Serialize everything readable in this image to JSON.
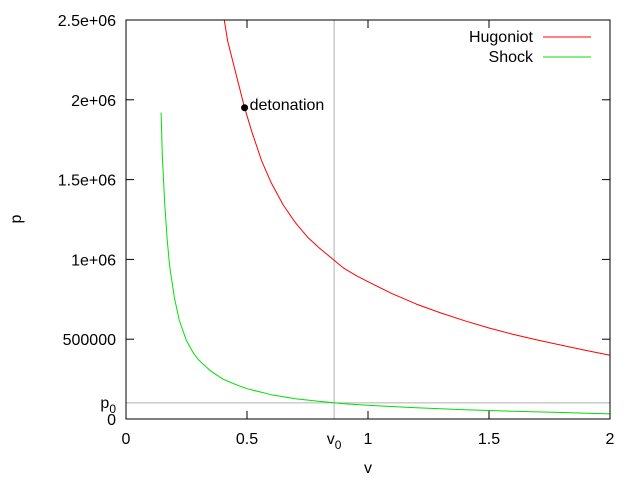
{
  "chart_data": {
    "type": "line",
    "title": "",
    "xlabel": "v",
    "ylabel": "p",
    "xlim": [
      0,
      2
    ],
    "ylim": [
      0,
      2500000
    ],
    "x_ticks": [
      {
        "value": 0,
        "label": "0"
      },
      {
        "value": 0.5,
        "label": "0.5"
      },
      {
        "value": 1,
        "label": "1"
      },
      {
        "value": 1.5,
        "label": "1.5"
      },
      {
        "value": 2,
        "label": "2"
      }
    ],
    "y_ticks": [
      {
        "value": 0,
        "label": "0"
      },
      {
        "value": 500000,
        "label": "500000"
      },
      {
        "value": 1000000,
        "label": "1e+06"
      },
      {
        "value": 1500000,
        "label": "1.5e+06"
      },
      {
        "value": 2000000,
        "label": "2e+06"
      },
      {
        "value": 2500000,
        "label": "2.5e+06"
      }
    ],
    "reference_lines": {
      "v0": {
        "value": 0.86,
        "base": "v",
        "sub": "0"
      },
      "p0": {
        "value": 101325,
        "base": "p",
        "sub": "0"
      }
    },
    "legend_position": "top-right",
    "series": [
      {
        "name": "Hugoniot",
        "color": "#ff0000",
        "x": [
          0.39,
          0.42,
          0.46,
          0.49,
          0.52,
          0.56,
          0.6,
          0.65,
          0.7,
          0.75,
          0.8,
          0.86,
          0.9,
          0.95,
          1.0,
          1.1,
          1.2,
          1.3,
          1.4,
          1.5,
          1.6,
          1.7,
          1.8,
          1.9,
          2.0
        ],
        "y": [
          2650000,
          2370000,
          2130000,
          1950000,
          1800000,
          1620000,
          1480000,
          1340000,
          1230000,
          1140000,
          1070000,
          995000,
          945000,
          900000,
          860000,
          785000,
          720000,
          665000,
          615000,
          570000,
          530000,
          495000,
          462000,
          430000,
          400000
        ]
      },
      {
        "name": "Shock",
        "color": "#00e000",
        "x": [
          0.145,
          0.15,
          0.16,
          0.17,
          0.18,
          0.2,
          0.22,
          0.25,
          0.28,
          0.3,
          0.35,
          0.4,
          0.45,
          0.5,
          0.6,
          0.7,
          0.8,
          0.86,
          0.9,
          1.0,
          1.2,
          1.4,
          1.6,
          1.8,
          2.0
        ],
        "y": [
          1920000,
          1650000,
          1350000,
          1130000,
          960000,
          760000,
          620000,
          490000,
          410000,
          370000,
          300000,
          250000,
          218000,
          190000,
          152000,
          127000,
          110000,
          101325,
          96000,
          86000,
          70000,
          58000,
          48000,
          41000,
          32000
        ]
      }
    ],
    "points": [
      {
        "x": 0.49,
        "y": 1950000,
        "label": "detonation",
        "color": "#000000"
      }
    ]
  }
}
